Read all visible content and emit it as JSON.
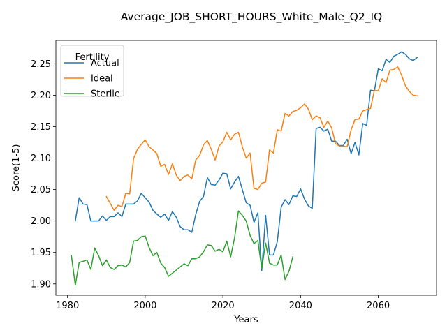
{
  "chart_data": {
    "type": "line",
    "title": "Average_JOB_SHORT_HOURS_White_Male_Q2_IQ",
    "xlabel": "Years",
    "ylabel": "Score(1-5)",
    "xlim": [
      1977,
      2075
    ],
    "ylim": [
      1.882,
      2.287
    ],
    "xticks": [
      1980,
      2000,
      2020,
      2040,
      2060
    ],
    "yticks": [
      1.9,
      1.95,
      2.0,
      2.05,
      2.1,
      2.15,
      2.2,
      2.25
    ],
    "ytick_labels": [
      "1.90",
      "1.95",
      "2.00",
      "2.05",
      "2.10",
      "2.15",
      "2.20",
      "2.25"
    ],
    "grid": false,
    "legend": {
      "title": "Fertility",
      "placement": "top-left"
    },
    "series": [
      {
        "name": "Actual",
        "color": "#1f77b4",
        "x": [
          1982,
          1983,
          1984,
          1985,
          1986,
          1987,
          1988,
          1989,
          1990,
          1991,
          1992,
          1993,
          1994,
          1995,
          1996,
          1997,
          1998,
          1999,
          2000,
          2001,
          2002,
          2003,
          2004,
          2005,
          2006,
          2007,
          2008,
          2009,
          2010,
          2011,
          2012,
          2013,
          2014,
          2015,
          2016,
          2017,
          2018,
          2019,
          2020,
          2021,
          2022,
          2023,
          2024,
          2025,
          2026,
          2027,
          2028,
          2029,
          2030,
          2031,
          2032,
          2033,
          2034,
          2035,
          2036,
          2037,
          2038,
          2039,
          2040,
          2041,
          2042,
          2043,
          2044,
          2045,
          2046,
          2047,
          2048,
          2049,
          2050,
          2051,
          2052,
          2053,
          2054,
          2055,
          2056,
          2057,
          2058,
          2059,
          2060,
          2061,
          2062,
          2063,
          2064,
          2065,
          2066,
          2067,
          2068,
          2069,
          2070
        ],
        "y": [
          2.0,
          2.037,
          2.027,
          2.026,
          2.0,
          2.0,
          2.0,
          2.008,
          2.001,
          2.007,
          2.007,
          2.013,
          2.007,
          2.027,
          2.027,
          2.027,
          2.032,
          2.044,
          2.037,
          2.03,
          2.017,
          2.011,
          2.006,
          2.011,
          2.001,
          2.015,
          2.006,
          1.991,
          1.986,
          1.986,
          1.982,
          2.01,
          2.031,
          2.039,
          2.069,
          2.058,
          2.057,
          2.065,
          2.076,
          2.075,
          2.051,
          2.062,
          2.071,
          2.05,
          2.029,
          2.025,
          1.998,
          2.013,
          1.921,
          2.009,
          1.946,
          1.946,
          1.967,
          2.022,
          2.034,
          2.026,
          2.04,
          2.039,
          2.051,
          2.035,
          2.024,
          2.02,
          2.147,
          2.149,
          2.143,
          2.146,
          2.127,
          2.127,
          2.12,
          2.12,
          2.13,
          2.107,
          2.125,
          2.105,
          2.155,
          2.152,
          2.208,
          2.207,
          2.242,
          2.239,
          2.257,
          2.252,
          2.262,
          2.265,
          2.269,
          2.265,
          2.258,
          2.255,
          2.26
        ]
      },
      {
        "name": "Ideal",
        "color": "#ff7f0e",
        "x": [
          1990,
          1991,
          1992,
          1993,
          1994,
          1995,
          1996,
          1997,
          1998,
          1999,
          2000,
          2001,
          2002,
          2003,
          2004,
          2005,
          2006,
          2007,
          2008,
          2009,
          2010,
          2011,
          2012,
          2013,
          2014,
          2015,
          2016,
          2017,
          2018,
          2019,
          2020,
          2021,
          2022,
          2023,
          2024,
          2025,
          2026,
          2027,
          2028,
          2029,
          2030,
          2031,
          2032,
          2033,
          2034,
          2035,
          2036,
          2037,
          2038,
          2039,
          2040,
          2041,
          2042,
          2043,
          2044,
          2045,
          2046,
          2047,
          2048,
          2049,
          2050,
          2051,
          2052,
          2053,
          2054,
          2055,
          2056,
          2057,
          2058,
          2059,
          2060,
          2061,
          2062,
          2063,
          2064,
          2065,
          2066,
          2067,
          2068,
          2069,
          2070
        ],
        "y": [
          2.039,
          2.028,
          2.017,
          2.025,
          2.023,
          2.044,
          2.043,
          2.099,
          2.114,
          2.122,
          2.129,
          2.118,
          2.113,
          2.107,
          2.087,
          2.09,
          2.074,
          2.091,
          2.073,
          2.064,
          2.071,
          2.073,
          2.067,
          2.097,
          2.104,
          2.121,
          2.128,
          2.114,
          2.097,
          2.119,
          2.126,
          2.141,
          2.129,
          2.138,
          2.141,
          2.118,
          2.1,
          2.108,
          2.052,
          2.05,
          2.06,
          2.062,
          2.113,
          2.108,
          2.145,
          2.143,
          2.171,
          2.167,
          2.174,
          2.176,
          2.18,
          2.186,
          2.178,
          2.161,
          2.167,
          2.164,
          2.149,
          2.159,
          2.148,
          2.123,
          2.119,
          2.119,
          2.118,
          2.145,
          2.161,
          2.162,
          2.175,
          2.177,
          2.179,
          2.208,
          2.207,
          2.226,
          2.22,
          2.24,
          2.241,
          2.245,
          2.232,
          2.215,
          2.206,
          2.2,
          2.199
        ]
      },
      {
        "name": "Sterile",
        "color": "#2ca02c",
        "x": [
          1981,
          1982,
          1983,
          1984,
          1985,
          1986,
          1987,
          1988,
          1989,
          1990,
          1991,
          1992,
          1993,
          1994,
          1995,
          1996,
          1997,
          1998,
          1999,
          2000,
          2001,
          2002,
          2003,
          2004,
          2005,
          2006,
          2007,
          2008,
          2009,
          2010,
          2011,
          2012,
          2013,
          2014,
          2015,
          2016,
          2017,
          2018,
          2019,
          2020,
          2021,
          2022,
          2023,
          2024,
          2025,
          2026,
          2027,
          2028,
          2029,
          2030,
          2031,
          2032,
          2033,
          2034,
          2035,
          2036,
          2037,
          2038
        ],
        "y": [
          1.945,
          1.898,
          1.934,
          1.936,
          1.938,
          1.923,
          1.957,
          1.945,
          1.929,
          1.938,
          1.926,
          1.923,
          1.929,
          1.93,
          1.927,
          1.934,
          1.968,
          1.969,
          1.975,
          1.976,
          1.958,
          1.945,
          1.95,
          1.933,
          1.926,
          1.912,
          1.917,
          1.922,
          1.927,
          1.932,
          1.929,
          1.94,
          1.94,
          1.943,
          1.951,
          1.962,
          1.961,
          1.952,
          1.955,
          1.951,
          1.968,
          1.943,
          1.973,
          2.016,
          2.009,
          2.0,
          1.977,
          1.964,
          1.969,
          1.925,
          1.965,
          1.933,
          1.93,
          1.93,
          1.946,
          1.907,
          1.92,
          1.943
        ]
      }
    ]
  }
}
